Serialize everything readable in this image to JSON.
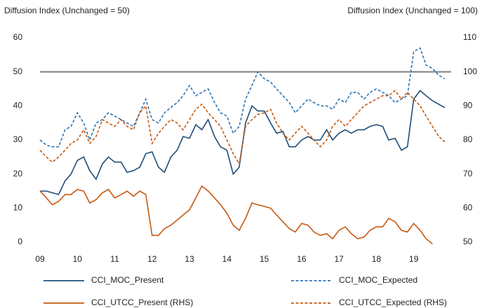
{
  "chart_data": {
    "type": "line",
    "y_label": "Diffusion Index (Unchanged = 50)",
    "y2_label": "Diffusion Index (Unchanged = 100)",
    "x": [
      2009,
      2009.17,
      2009.33,
      2009.5,
      2009.67,
      2009.83,
      2010,
      2010.17,
      2010.33,
      2010.5,
      2010.67,
      2010.83,
      2011,
      2011.17,
      2011.33,
      2011.5,
      2011.67,
      2011.83,
      2012,
      2012.17,
      2012.33,
      2012.5,
      2012.67,
      2012.83,
      2013,
      2013.17,
      2013.33,
      2013.5,
      2013.67,
      2013.83,
      2014,
      2014.17,
      2014.33,
      2014.5,
      2014.67,
      2014.83,
      2015,
      2015.17,
      2015.33,
      2015.5,
      2015.67,
      2015.83,
      2016,
      2016.17,
      2016.33,
      2016.5,
      2016.67,
      2016.83,
      2017,
      2017.17,
      2017.33,
      2017.5,
      2017.67,
      2017.83,
      2018,
      2018.17,
      2018.33,
      2018.5,
      2018.67,
      2018.83,
      2019,
      2019.17,
      2019.33,
      2019.5,
      2019.67,
      2019.83
    ],
    "xlim": [
      2009,
      2020
    ],
    "xticks": [
      {
        "value": 2009,
        "label": "09"
      },
      {
        "value": 2010,
        "label": "10"
      },
      {
        "value": 2011,
        "label": "11"
      },
      {
        "value": 2012,
        "label": "12"
      },
      {
        "value": 2013,
        "label": "13"
      },
      {
        "value": 2014,
        "label": "14"
      },
      {
        "value": 2015,
        "label": "15"
      },
      {
        "value": 2016,
        "label": "16"
      },
      {
        "value": 2017,
        "label": "17"
      },
      {
        "value": 2018,
        "label": "18"
      },
      {
        "value": 2019,
        "label": "19"
      }
    ],
    "ylim": [
      0,
      60
    ],
    "yticks": [
      0,
      10,
      20,
      30,
      40,
      50,
      60
    ],
    "y2lim": [
      50,
      110
    ],
    "y2ticks": [
      50,
      60,
      70,
      80,
      90,
      100,
      110
    ],
    "reference_line": 50,
    "reference_color": "#7f7f7f",
    "grid": false,
    "series": [
      {
        "name": "CCI_MOC_Present",
        "color": "#1f4e79",
        "line_style": "solid",
        "values": [
          15,
          15,
          14.5,
          14,
          18,
          20,
          24,
          25,
          21,
          18.5,
          23,
          25,
          23.5,
          23.5,
          20.5,
          21,
          22,
          26,
          26.5,
          22,
          20.5,
          25,
          27,
          31,
          30.5,
          34.5,
          33,
          36,
          31,
          28,
          27,
          20,
          22,
          35,
          40,
          38.5,
          38.5,
          35,
          32,
          32.5,
          28,
          28,
          30,
          31,
          30,
          30,
          33,
          30,
          32,
          33,
          32,
          33,
          33,
          34,
          34.5,
          34,
          30,
          30.5,
          27,
          28,
          42,
          44.5,
          43,
          41.5,
          40.5,
          39.5
        ]
      },
      {
        "name": "CCI_MOC_Expected",
        "color": "#2e75b6",
        "line_style": "dashed",
        "values": [
          30,
          28.5,
          28,
          28,
          33,
          34,
          38,
          35,
          30,
          35,
          36,
          38,
          37,
          36,
          35,
          34,
          38,
          42,
          36,
          35,
          38,
          39.5,
          41,
          43,
          46,
          43,
          44,
          45,
          41,
          38,
          37,
          32,
          34,
          42,
          46,
          50,
          48,
          47,
          45,
          43,
          41,
          38,
          40,
          42,
          41,
          40,
          40,
          39,
          42,
          41,
          44,
          44,
          42,
          44,
          45,
          44,
          43,
          41,
          42,
          43,
          56,
          57,
          52,
          51,
          49,
          48
        ]
      },
      {
        "name": "CCI_UTCC_Present (RHS)",
        "color": "#c55a11",
        "line_style": "solid",
        "axis": "y2",
        "values": [
          65,
          63,
          61,
          62,
          64,
          64,
          65.5,
          65,
          61.5,
          62.5,
          64.5,
          65.5,
          63,
          64,
          65,
          63.5,
          65,
          64,
          52,
          52,
          54,
          55,
          56.5,
          58,
          59.5,
          63,
          66.5,
          65,
          63,
          61,
          58.5,
          55,
          53.5,
          57,
          61.5,
          61,
          60.5,
          60,
          58,
          56,
          54,
          53,
          55.5,
          55,
          53,
          52,
          52.5,
          51,
          53.5,
          54.5,
          52.5,
          51,
          51.5,
          53.5,
          54.5,
          54.5,
          57,
          56,
          53.5,
          53,
          55.5,
          53.5,
          51,
          49.5,
          null,
          null
        ]
      },
      {
        "name": "CCI_UTCC_Expected (RHS)",
        "color": "#c55a11",
        "line_style": "dashed",
        "axis": "y2",
        "values": [
          77,
          75,
          73.5,
          75,
          77,
          79,
          80,
          83,
          79,
          81,
          86,
          85,
          84,
          86,
          84,
          83,
          88,
          90,
          79,
          82,
          84,
          86,
          85,
          83,
          86,
          89,
          90.5,
          88,
          86,
          84,
          80,
          76,
          73,
          84,
          86,
          87.5,
          88,
          89,
          85,
          82,
          80,
          82,
          84,
          82,
          80,
          78,
          80,
          84,
          86,
          84,
          86,
          88,
          90,
          91,
          92,
          93,
          93,
          94.5,
          92,
          94,
          92,
          90,
          87,
          84,
          81,
          79.5
        ]
      }
    ]
  }
}
